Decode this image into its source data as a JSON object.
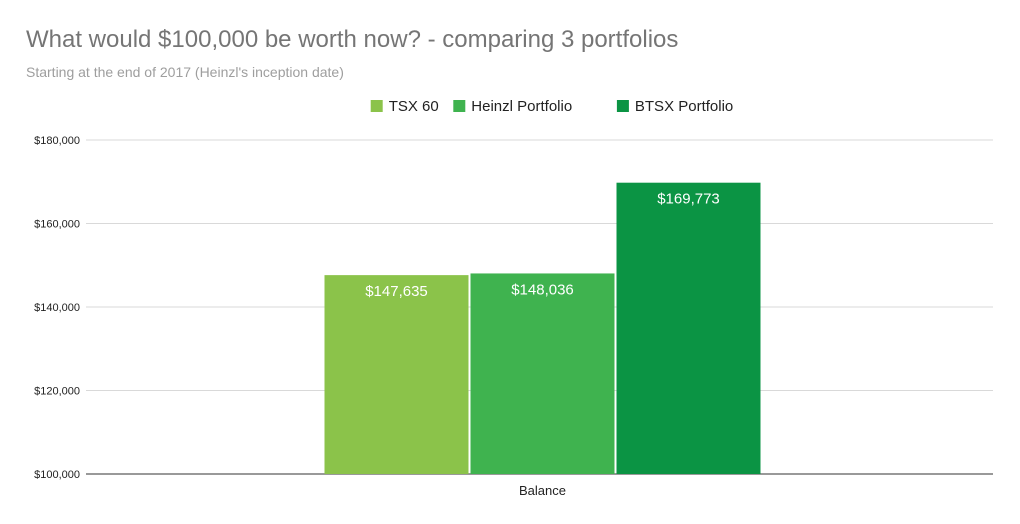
{
  "chart_data": {
    "type": "bar",
    "title": "What would $100,000 be worth now? - comparing 3 portfolios",
    "subtitle": "Starting at the end of 2017 (Heinzl's inception date)",
    "categories": [
      "Balance"
    ],
    "series": [
      {
        "name": "TSX 60",
        "values": [
          147635
        ],
        "label": "$147,635",
        "color": "#8bc34a"
      },
      {
        "name": "Heinzl Portfolio",
        "values": [
          148036
        ],
        "label": "$148,036",
        "color": "#3fb34f"
      },
      {
        "name": "BTSX Portfolio",
        "values": [
          169773
        ],
        "label": "$169,773",
        "color": "#0b9444"
      }
    ],
    "ylim": [
      100000,
      180000
    ],
    "yticks": [
      100000,
      120000,
      140000,
      160000,
      180000
    ],
    "ytick_labels": [
      "$100,000",
      "$120,000",
      "$140,000",
      "$160,000",
      "$180,000"
    ],
    "xlabel": "",
    "ylabel": "",
    "legend_position": "top-center",
    "grid": true
  }
}
